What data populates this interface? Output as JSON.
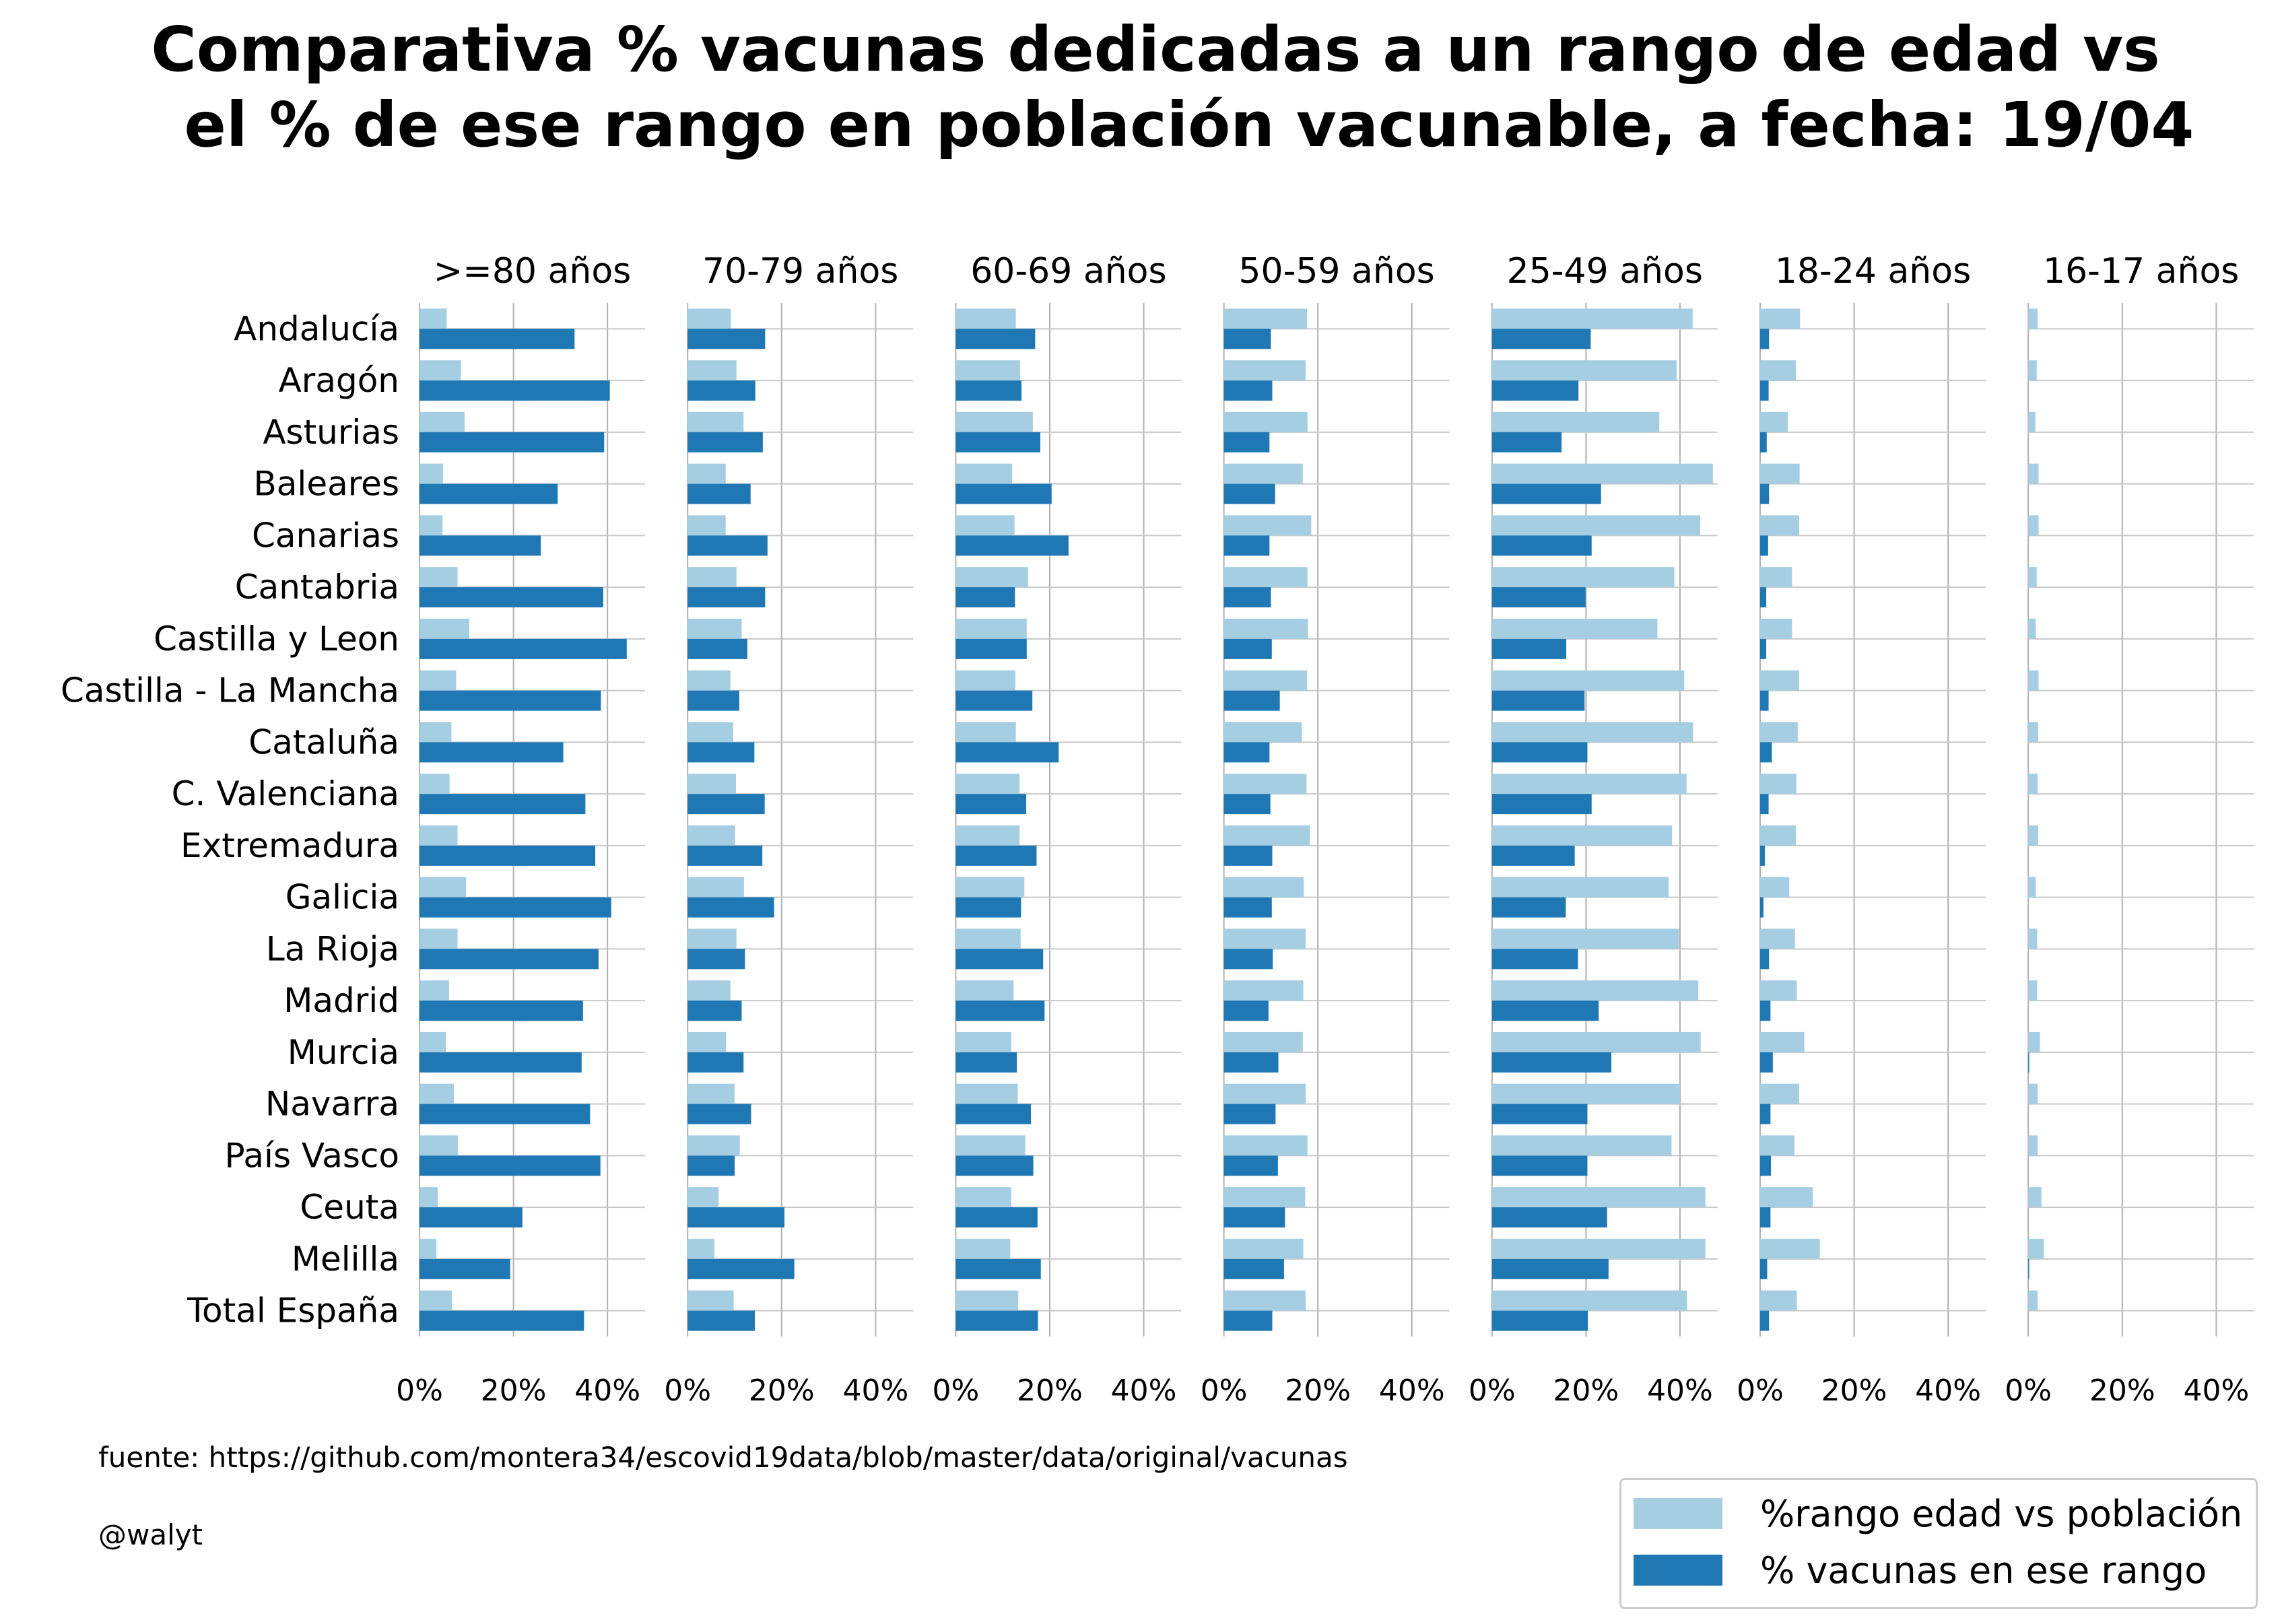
{
  "title_lines": [
    "Comparativa % vacunas dedicadas a un rango de edad vs",
    "el % de ese rango en población vacunable, a fecha: 19/04"
  ],
  "source": "fuente: https://github.com/montera34/escovid19data/blob/master/data/original/vacunas",
  "credit": "@walyt",
  "colors": {
    "poblacion": "#a6cee3",
    "vacunas": "#1f78b4",
    "grid": "#b0b0b0",
    "row_line": "#c8c8c8"
  },
  "legend": {
    "location": "bottom-right",
    "items": [
      {
        "label": "%rango edad vs población",
        "series": "poblacion"
      },
      {
        "label": "% vacunas en ese rango",
        "series": "vacunas"
      }
    ]
  },
  "chart_data": {
    "type": "bar",
    "orientation": "horizontal",
    "xlim": [
      0,
      48
    ],
    "xticks": [
      0,
      20,
      40
    ],
    "xtick_labels": [
      "0%",
      "20%",
      "40%"
    ],
    "grid": true,
    "categories": [
      "Andalucía",
      "Aragón",
      "Asturias ",
      "Baleares",
      "Canarias",
      "Cantabria",
      "Castilla y Leon",
      "Castilla - La Mancha",
      "Cataluña",
      "C. Valenciana",
      "Extremadura",
      "Galicia",
      "La Rioja",
      "Madrid",
      "Murcia",
      "Navarra",
      "País Vasco",
      "Ceuta",
      "Melilla",
      "Total España"
    ],
    "panels": [
      {
        "title": ">=80 años",
        "poblacion": [
          5.8,
          8.8,
          9.6,
          5.0,
          4.9,
          8.1,
          10.6,
          7.8,
          6.8,
          6.4,
          8.1,
          9.9,
          8.1,
          6.3,
          5.6,
          7.3,
          8.2,
          3.9,
          3.6,
          6.9
        ],
        "vacunas": [
          33.0,
          40.5,
          39.3,
          29.4,
          25.8,
          39.1,
          44.1,
          38.6,
          30.6,
          35.3,
          37.4,
          40.8,
          38.1,
          34.8,
          34.5,
          36.3,
          38.5,
          21.9,
          19.3,
          35.0
        ]
      },
      {
        "title": "70-79 años",
        "poblacion": [
          9.2,
          10.4,
          11.9,
          8.1,
          8.1,
          10.4,
          11.5,
          9.1,
          9.7,
          10.3,
          10.1,
          12.0,
          10.4,
          9.1,
          8.2,
          10.0,
          11.1,
          6.6,
          5.7,
          9.8
        ],
        "vacunas": [
          16.5,
          14.4,
          16.0,
          13.4,
          17.0,
          16.5,
          12.7,
          11.0,
          14.2,
          16.4,
          15.9,
          18.4,
          12.2,
          11.5,
          11.9,
          13.5,
          10.0,
          20.6,
          22.7,
          14.3
        ]
      },
      {
        "title": "60-69 años",
        "poblacion": [
          12.8,
          13.7,
          16.4,
          12.0,
          12.5,
          15.4,
          15.1,
          12.7,
          12.8,
          13.6,
          13.6,
          14.6,
          13.8,
          12.3,
          11.8,
          13.2,
          14.8,
          11.8,
          11.6,
          13.3
        ],
        "vacunas": [
          16.9,
          14.0,
          18.0,
          20.4,
          24.0,
          12.6,
          15.1,
          16.3,
          21.9,
          15.0,
          17.2,
          13.9,
          18.6,
          18.9,
          13.0,
          16.0,
          16.5,
          17.4,
          18.1,
          17.5
        ]
      },
      {
        "title": "50-59 años",
        "poblacion": [
          17.7,
          17.4,
          17.8,
          16.8,
          18.6,
          17.8,
          17.9,
          17.7,
          16.6,
          17.6,
          18.3,
          17.0,
          17.4,
          16.9,
          16.8,
          17.4,
          17.8,
          17.3,
          16.9,
          17.4
        ],
        "vacunas": [
          10.0,
          10.3,
          9.7,
          10.9,
          9.7,
          10.0,
          10.2,
          11.9,
          9.7,
          9.9,
          10.3,
          10.2,
          10.4,
          9.5,
          11.6,
          11.0,
          11.5,
          13.0,
          12.8,
          10.3
        ]
      },
      {
        "title": "25-49 años",
        "poblacion": [
          42.7,
          39.3,
          35.6,
          47.0,
          44.3,
          38.8,
          35.2,
          40.9,
          42.8,
          41.4,
          38.3,
          37.6,
          39.8,
          43.9,
          44.4,
          40.0,
          38.2,
          45.4,
          45.4,
          41.5
        ],
        "vacunas": [
          21.0,
          18.4,
          14.8,
          23.2,
          21.2,
          19.9,
          15.8,
          19.7,
          20.3,
          21.2,
          17.6,
          15.7,
          18.3,
          22.7,
          25.4,
          20.3,
          20.3,
          24.5,
          24.8,
          20.4
        ]
      },
      {
        "title": "18-24 años",
        "poblacion": [
          8.5,
          7.6,
          5.9,
          8.4,
          8.3,
          6.8,
          6.8,
          8.3,
          8.0,
          7.7,
          7.6,
          6.2,
          7.4,
          7.8,
          9.4,
          8.3,
          7.3,
          11.2,
          12.7,
          7.8
        ],
        "vacunas": [
          1.9,
          1.8,
          1.4,
          1.9,
          1.7,
          1.3,
          1.3,
          1.8,
          2.5,
          1.8,
          1.0,
          0.7,
          1.9,
          2.2,
          2.7,
          2.2,
          2.3,
          2.2,
          1.5,
          1.9
        ]
      },
      {
        "title": "16-17 años",
        "poblacion": [
          2.0,
          1.8,
          1.5,
          2.2,
          2.2,
          1.8,
          1.6,
          2.2,
          2.1,
          2.0,
          2.1,
          1.6,
          1.9,
          1.9,
          2.5,
          2.0,
          2.0,
          2.8,
          3.3,
          2.0
        ],
        "vacunas": [
          0.0,
          0.0,
          0.0,
          0.0,
          0.0,
          0.0,
          0.0,
          0.0,
          0.0,
          0.0,
          0.0,
          0.0,
          0.0,
          0.0,
          0.2,
          0.0,
          0.0,
          0.0,
          0.2,
          0.0
        ]
      }
    ]
  }
}
